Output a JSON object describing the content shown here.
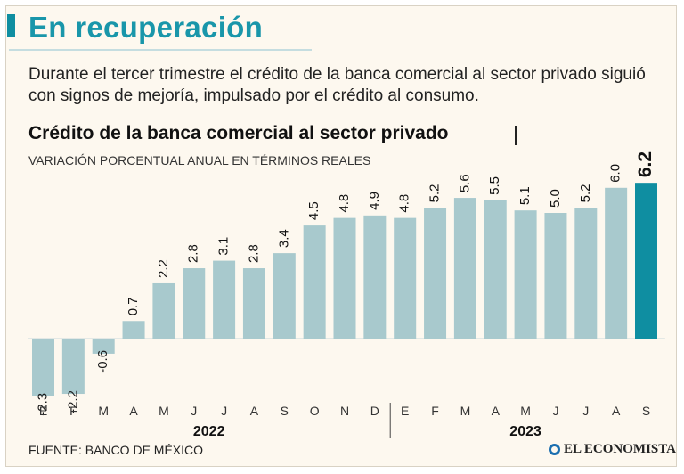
{
  "header": {
    "title": "En recuperación",
    "subtitle": "Durante el tercer trimestre el crédito de la banca comercial al sector privado siguió con signos de mejoría, impulsado por el crédito al consumo."
  },
  "chart_data": {
    "type": "bar",
    "title": "Crédito de la banca comercial al sector privado",
    "subtitle": "VARIACIÓN PORCENTUAL ANUAL EN TÉRMINOS REALES",
    "categories": [
      "E",
      "F",
      "M",
      "A",
      "M",
      "J",
      "J",
      "A",
      "S",
      "O",
      "N",
      "D",
      "E",
      "F",
      "M",
      "A",
      "M",
      "J",
      "J",
      "A",
      "S"
    ],
    "years": [
      {
        "label": "2022",
        "start": 0,
        "end": 11
      },
      {
        "label": "2023",
        "start": 12,
        "end": 20
      }
    ],
    "values": [
      -2.3,
      -2.2,
      -0.6,
      0.7,
      2.2,
      2.8,
      3.1,
      2.8,
      3.4,
      4.5,
      4.8,
      4.9,
      4.8,
      5.2,
      5.6,
      5.5,
      5.1,
      5.0,
      5.2,
      6.0,
      6.2
    ],
    "value_labels": [
      "-2.3",
      "-2.2",
      "-0.6",
      "0.7",
      "2.2",
      "2.8",
      "3.1",
      "2.8",
      "3.4",
      "4.5",
      "4.8",
      "4.9",
      "4.8",
      "5.2",
      "5.6",
      "5.5",
      "5.1",
      "5.0",
      "5.2",
      "6.0",
      "6.2"
    ],
    "highlight_index": 20,
    "colors": {
      "bar": "#a8c9cd",
      "highlight": "#0f8ea1"
    }
  },
  "footer": {
    "source": "FUENTE: BANCO DE MÉXICO",
    "brand": "EL ECONOMISTA"
  }
}
